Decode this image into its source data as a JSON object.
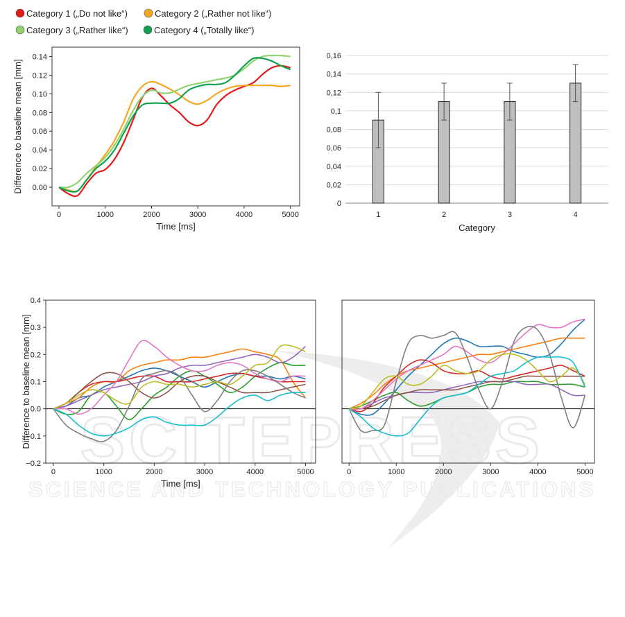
{
  "legend": [
    {
      "label": "Category 1 („Do not like“)",
      "color": "#e31a1c"
    },
    {
      "label": "Category 2 („Rather not like“)",
      "color": "#f5a623"
    },
    {
      "label": "Category 3 („Rather like“)",
      "color": "#8fd46e"
    },
    {
      "label": "Category 4 („Totally like“)",
      "color": "#12a150"
    }
  ],
  "watermark": {
    "line1": "SCITEPRESS",
    "line2": "SCIENCE AND TECHNOLOGY PUBLICATIONS"
  },
  "chart_data": [
    {
      "type": "line",
      "title": "",
      "xlabel": "Time [ms]",
      "ylabel": "Difference to baseline mean [mm]",
      "xlim": [
        -150,
        5200
      ],
      "ylim": [
        -0.02,
        0.15
      ],
      "x_ticks": [
        0,
        1000,
        2000,
        3000,
        4000,
        5000
      ],
      "y_ticks": [
        0.0,
        0.02,
        0.04,
        0.06,
        0.08,
        0.1,
        0.12,
        0.14
      ],
      "y_tick_labels": [
        "0.00",
        "0.02",
        "0.04",
        "0.06",
        "0.08",
        "0.10",
        "0.12",
        "0.14"
      ],
      "grid": false,
      "x": [
        0,
        200,
        400,
        600,
        800,
        1000,
        1200,
        1400,
        1600,
        1800,
        2000,
        2200,
        2400,
        2600,
        2800,
        3000,
        3200,
        3400,
        3600,
        3800,
        4000,
        4200,
        4400,
        4600,
        4800,
        5000
      ],
      "series": [
        {
          "name": "Category 1 („Do not like“)",
          "color": "#e31a1c",
          "values": [
            0.0,
            -0.007,
            -0.009,
            0.004,
            0.015,
            0.019,
            0.03,
            0.048,
            0.072,
            0.096,
            0.106,
            0.098,
            0.088,
            0.08,
            0.07,
            0.066,
            0.072,
            0.088,
            0.098,
            0.104,
            0.108,
            0.112,
            0.121,
            0.128,
            0.13,
            0.128
          ]
        },
        {
          "name": "Category 2 („Rather not like“)",
          "color": "#f5a623",
          "values": [
            0.0,
            -0.003,
            -0.004,
            0.008,
            0.022,
            0.035,
            0.05,
            0.07,
            0.094,
            0.108,
            0.113,
            0.11,
            0.105,
            0.099,
            0.092,
            0.089,
            0.093,
            0.1,
            0.105,
            0.108,
            0.109,
            0.109,
            0.109,
            0.109,
            0.108,
            0.109
          ]
        },
        {
          "name": "Category 3 („Rather like“)",
          "color": "#8fd46e",
          "values": [
            0.0,
            0.0,
            0.005,
            0.015,
            0.023,
            0.032,
            0.045,
            0.062,
            0.082,
            0.097,
            0.104,
            0.101,
            0.101,
            0.105,
            0.109,
            0.111,
            0.113,
            0.115,
            0.117,
            0.12,
            0.127,
            0.135,
            0.14,
            0.141,
            0.141,
            0.14
          ]
        },
        {
          "name": "Category 4 („Totally like“)",
          "color": "#12a150",
          "values": [
            0.0,
            -0.004,
            -0.004,
            0.008,
            0.02,
            0.028,
            0.04,
            0.058,
            0.076,
            0.088,
            0.09,
            0.09,
            0.09,
            0.095,
            0.104,
            0.108,
            0.11,
            0.11,
            0.112,
            0.12,
            0.13,
            0.138,
            0.138,
            0.135,
            0.13,
            0.126
          ]
        }
      ]
    },
    {
      "type": "bar",
      "title": "",
      "xlabel": "Category",
      "ylabel": "",
      "categories": [
        "1",
        "2",
        "3",
        "4"
      ],
      "values": [
        0.09,
        0.11,
        0.11,
        0.13
      ],
      "error": [
        0.03,
        0.02,
        0.02,
        0.02
      ],
      "ylim": [
        0,
        0.16
      ],
      "y_ticks": [
        0,
        0.02,
        0.04,
        0.06,
        0.08,
        0.1,
        0.12,
        0.14,
        0.16
      ],
      "y_tick_labels": [
        "0",
        "0,02",
        "0,04",
        "0,06",
        "0,08",
        "0,1",
        "0,12",
        "0,14",
        "0,16"
      ],
      "grid": true,
      "bar_color": "#bfbfbf"
    },
    {
      "type": "line",
      "title": "",
      "xlabel": "Time [ms]",
      "ylabel": "Difference to baseline mean [mm]",
      "xlim": [
        -150,
        5200
      ],
      "ylim": [
        -0.2,
        0.4
      ],
      "x_ticks": [
        0,
        1000,
        2000,
        3000,
        4000,
        5000
      ],
      "y_ticks": [
        -0.2,
        -0.1,
        0.0,
        0.1,
        0.2,
        0.3,
        0.4
      ],
      "y_tick_labels": [
        "−0.2",
        "−0.1",
        "0.0",
        "0.1",
        "0.2",
        "0.3",
        "0.4"
      ],
      "zero_line": true,
      "grid": false,
      "x": [
        0,
        250,
        500,
        750,
        1000,
        1250,
        1500,
        1750,
        2000,
        2250,
        2500,
        2750,
        3000,
        3250,
        3500,
        3750,
        4000,
        4250,
        4500,
        4750,
        5000
      ],
      "series": [
        {
          "color": "#1f77b4",
          "values": [
            0.0,
            0.01,
            0.04,
            0.05,
            0.08,
            0.1,
            0.12,
            0.14,
            0.15,
            0.14,
            0.12,
            0.1,
            0.08,
            0.1,
            0.12,
            0.13,
            0.12,
            0.12,
            0.11,
            0.12,
            0.11
          ]
        },
        {
          "color": "#ff7f0e",
          "values": [
            0.0,
            0.02,
            0.04,
            0.08,
            0.1,
            0.1,
            0.14,
            0.16,
            0.17,
            0.18,
            0.18,
            0.19,
            0.19,
            0.2,
            0.21,
            0.22,
            0.21,
            0.2,
            0.18,
            0.1,
            0.04
          ]
        },
        {
          "color": "#2ca02c",
          "values": [
            0.0,
            -0.02,
            -0.01,
            0.05,
            0.06,
            0.01,
            -0.04,
            0.0,
            0.05,
            0.08,
            0.12,
            0.14,
            0.12,
            0.09,
            0.06,
            0.08,
            0.12,
            0.15,
            0.17,
            0.16,
            0.16
          ]
        },
        {
          "color": "#d62728",
          "values": [
            0.0,
            0.02,
            0.06,
            0.09,
            0.1,
            0.1,
            0.11,
            0.12,
            0.12,
            0.1,
            0.1,
            0.1,
            0.11,
            0.12,
            0.13,
            0.13,
            0.12,
            0.11,
            0.1,
            0.1,
            0.1
          ]
        },
        {
          "color": "#9467bd",
          "values": [
            0.0,
            0.01,
            0.03,
            0.05,
            0.07,
            0.08,
            0.09,
            0.1,
            0.12,
            0.13,
            0.15,
            0.16,
            0.16,
            0.17,
            0.18,
            0.19,
            0.2,
            0.19,
            0.17,
            0.19,
            0.23
          ]
        },
        {
          "color": "#8c564b",
          "values": [
            0.0,
            0.02,
            0.06,
            0.1,
            0.13,
            0.13,
            0.1,
            0.06,
            0.04,
            0.06,
            0.1,
            0.12,
            0.12,
            0.1,
            0.08,
            0.06,
            0.06,
            0.06,
            0.07,
            0.08,
            0.09
          ]
        },
        {
          "color": "#e377c2",
          "values": [
            0.0,
            0.0,
            -0.02,
            0.0,
            0.05,
            0.1,
            0.18,
            0.25,
            0.23,
            0.19,
            0.16,
            0.14,
            0.14,
            0.16,
            0.17,
            0.16,
            0.13,
            0.11,
            0.1,
            0.12,
            0.12
          ]
        },
        {
          "color": "#7f7f7f",
          "values": [
            0.0,
            -0.06,
            -0.09,
            -0.11,
            -0.12,
            -0.08,
            0.01,
            0.11,
            0.13,
            0.14,
            0.12,
            0.05,
            -0.01,
            0.03,
            0.1,
            0.14,
            0.14,
            0.12,
            0.09,
            0.06,
            0.04
          ]
        },
        {
          "color": "#bcbd22",
          "values": [
            0.0,
            0.02,
            0.05,
            0.07,
            0.06,
            0.03,
            0.02,
            0.08,
            0.1,
            0.09,
            0.09,
            0.08,
            0.09,
            0.1,
            0.09,
            0.12,
            0.16,
            0.17,
            0.23,
            0.23,
            0.21
          ]
        },
        {
          "color": "#17becf",
          "values": [
            0.0,
            -0.02,
            -0.06,
            -0.09,
            -0.1,
            -0.09,
            -0.07,
            -0.04,
            -0.03,
            -0.05,
            -0.06,
            -0.06,
            -0.06,
            -0.03,
            0.01,
            0.04,
            0.05,
            0.03,
            0.05,
            0.06,
            0.06
          ]
        }
      ]
    },
    {
      "type": "line",
      "title": "",
      "xlabel": "",
      "ylabel": "",
      "xlim": [
        -150,
        5200
      ],
      "ylim": [
        -0.2,
        0.4
      ],
      "x_ticks": [
        0,
        1000,
        2000,
        3000,
        4000,
        5000
      ],
      "y_ticks": [],
      "zero_line": true,
      "grid": false,
      "x": [
        0,
        250,
        500,
        750,
        1000,
        1250,
        1500,
        1750,
        2000,
        2250,
        2500,
        2750,
        3000,
        3250,
        3500,
        3750,
        4000,
        4250,
        4500,
        4750,
        5000
      ],
      "series": [
        {
          "color": "#1f77b4",
          "values": [
            0.0,
            -0.02,
            -0.02,
            0.02,
            0.07,
            0.12,
            0.16,
            0.2,
            0.24,
            0.26,
            0.25,
            0.23,
            0.23,
            0.23,
            0.21,
            0.2,
            0.19,
            0.2,
            0.24,
            0.29,
            0.33
          ]
        },
        {
          "color": "#ff7f0e",
          "values": [
            0.0,
            0.02,
            0.05,
            0.09,
            0.12,
            0.14,
            0.15,
            0.16,
            0.17,
            0.18,
            0.19,
            0.2,
            0.2,
            0.21,
            0.22,
            0.23,
            0.24,
            0.25,
            0.26,
            0.26,
            0.26
          ]
        },
        {
          "color": "#2ca02c",
          "values": [
            0.0,
            0.01,
            0.03,
            0.05,
            0.06,
            0.03,
            0.01,
            0.02,
            0.04,
            0.05,
            0.06,
            0.08,
            0.09,
            0.09,
            0.1,
            0.1,
            0.1,
            0.09,
            0.09,
            0.09,
            0.08
          ]
        },
        {
          "color": "#d62728",
          "values": [
            0.0,
            -0.01,
            0.02,
            0.08,
            0.12,
            0.16,
            0.18,
            0.17,
            0.14,
            0.13,
            0.13,
            0.14,
            0.12,
            0.11,
            0.12,
            0.13,
            0.14,
            0.15,
            0.16,
            0.14,
            0.12
          ]
        },
        {
          "color": "#9467bd",
          "values": [
            0.0,
            0.0,
            0.02,
            0.04,
            0.05,
            0.06,
            0.06,
            0.06,
            0.07,
            0.08,
            0.09,
            0.1,
            0.1,
            0.1,
            0.1,
            0.09,
            0.09,
            0.09,
            0.07,
            0.05,
            0.05
          ]
        },
        {
          "color": "#8c564b",
          "values": [
            0.0,
            0.0,
            0.01,
            0.03,
            0.05,
            0.06,
            0.07,
            0.07,
            0.07,
            0.07,
            0.08,
            0.09,
            0.1,
            0.1,
            0.11,
            0.12,
            0.12,
            0.12,
            0.12,
            0.12,
            0.12
          ]
        },
        {
          "color": "#e377c2",
          "values": [
            0.0,
            0.0,
            0.03,
            0.07,
            0.11,
            0.14,
            0.16,
            0.18,
            0.2,
            0.23,
            0.21,
            0.18,
            0.17,
            0.2,
            0.24,
            0.28,
            0.31,
            0.3,
            0.3,
            0.32,
            0.33
          ]
        },
        {
          "color": "#7f7f7f",
          "values": [
            0.0,
            -0.08,
            -0.08,
            -0.06,
            0.1,
            0.24,
            0.27,
            0.26,
            0.27,
            0.28,
            0.19,
            0.07,
            0.0,
            0.1,
            0.25,
            0.3,
            0.29,
            0.2,
            0.04,
            -0.07,
            0.05
          ]
        },
        {
          "color": "#bcbd22",
          "values": [
            0.0,
            0.01,
            0.06,
            0.11,
            0.12,
            0.09,
            0.09,
            0.12,
            0.16,
            0.14,
            0.13,
            0.14,
            0.18,
            0.2,
            0.2,
            0.18,
            0.14,
            0.1,
            0.12,
            0.15,
            0.09
          ]
        },
        {
          "color": "#17becf",
          "values": [
            0.0,
            -0.03,
            -0.07,
            -0.09,
            -0.1,
            -0.09,
            -0.04,
            0.01,
            0.04,
            0.05,
            0.06,
            0.09,
            0.12,
            0.13,
            0.14,
            0.17,
            0.19,
            0.19,
            0.19,
            0.17,
            0.08
          ]
        }
      ]
    }
  ]
}
